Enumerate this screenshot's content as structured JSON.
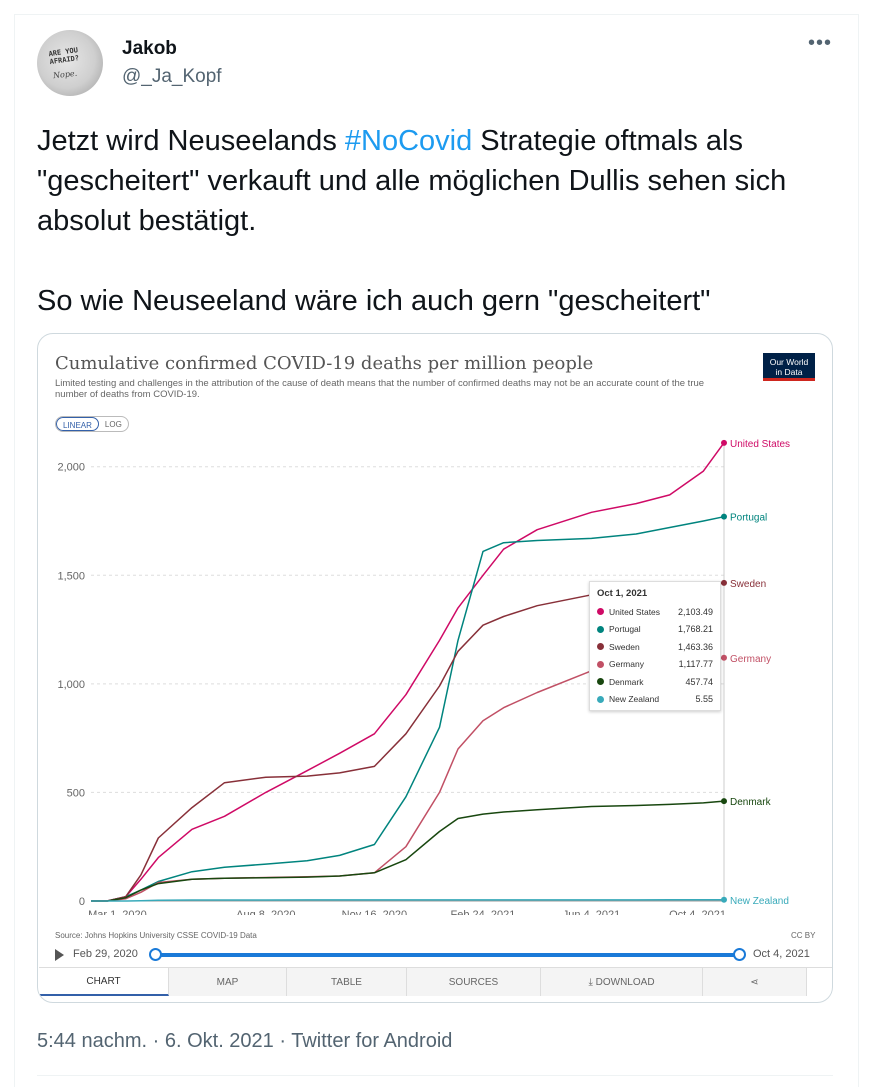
{
  "user": {
    "display_name": "Jakob",
    "handle": "@_Ja_Kopf",
    "avatar_text_1": "ARE YOU AFRAID?",
    "avatar_text_2": "Nope."
  },
  "tweet": {
    "line1_before": "Jetzt wird Neuseelands ",
    "hashtag": "#NoCovid",
    "line1_after": " Strategie oftmals als \"gescheitert\" verkauft und alle möglichen Dullis sehen sich absolut bestätigt.",
    "paragraph2": "So wie Neuseeland wäre ich auch gern \"gescheitert\"",
    "more_label": "•••"
  },
  "meta": {
    "timestamp": "5:44 nachm. · 6. Okt. 2021 · Twitter for Android"
  },
  "owid": {
    "logo_line1": "Our World",
    "logo_line2": "in Data",
    "scale_linear": "LINEAR",
    "scale_log": "LOG",
    "source": "Source: Johns Hopkins University CSSE COVID-19 Data",
    "license": "CC BY",
    "timeline_start": "Feb 29, 2020",
    "timeline_end": "Oct 4, 2021",
    "tabs": [
      "CHART",
      "MAP",
      "TABLE",
      "SOURCES",
      "⤓ DOWNLOAD",
      "⋖"
    ],
    "tooltip": {
      "date": "Oct 1, 2021",
      "rows": [
        {
          "name": "United States",
          "value": "2,103.49",
          "color": "#cf0a66"
        },
        {
          "name": "Portugal",
          "value": "1,768.21",
          "color": "#00847e"
        },
        {
          "name": "Sweden",
          "value": "1,463.36",
          "color": "#883039"
        },
        {
          "name": "Germany",
          "value": "1,117.77",
          "color": "#c15065"
        },
        {
          "name": "Denmark",
          "value": "457.74",
          "color": "#18470f"
        },
        {
          "name": "New Zealand",
          "value": "5.55",
          "color": "#38aaba"
        }
      ]
    }
  },
  "chart_data": {
    "type": "line",
    "title": "Cumulative confirmed COVID-19 deaths per million people",
    "subtitle": "Limited testing and challenges in the attribution of the cause of death means that the number of confirmed deaths may not be an accurate count of the true number of deaths from COVID-19.",
    "xlabel": "",
    "ylabel": "",
    "ylim": [
      0,
      2100
    ],
    "x_ticks": [
      "Mar 1, 2020",
      "Aug 8, 2020",
      "Nov 16, 2020",
      "Feb 24, 2021",
      "Jun 4, 2021",
      "Oct 4, 2021"
    ],
    "y_ticks": [
      "0",
      "500",
      "1,000",
      "1,500",
      "2,000"
    ],
    "x": [
      "2020-02-29",
      "2020-03-15",
      "2020-04-01",
      "2020-04-15",
      "2020-05-01",
      "2020-06-01",
      "2020-07-01",
      "2020-08-08",
      "2020-09-15",
      "2020-10-15",
      "2020-11-16",
      "2020-12-15",
      "2021-01-15",
      "2021-02-01",
      "2021-02-24",
      "2021-03-15",
      "2021-04-15",
      "2021-06-04",
      "2021-07-15",
      "2021-08-15",
      "2021-09-15",
      "2021-10-04"
    ],
    "series": [
      {
        "name": "United States",
        "color": "#cf0a66",
        "values": [
          0,
          1,
          20,
          100,
          200,
          330,
          390,
          500,
          600,
          680,
          770,
          950,
          1200,
          1350,
          1500,
          1620,
          1710,
          1790,
          1830,
          1870,
          1980,
          2110
        ]
      },
      {
        "name": "Portugal",
        "color": "#00847e",
        "values": [
          0,
          0,
          20,
          50,
          90,
          135,
          155,
          170,
          185,
          210,
          260,
          480,
          800,
          1200,
          1610,
          1650,
          1660,
          1670,
          1690,
          1720,
          1750,
          1770
        ]
      },
      {
        "name": "Sweden",
        "color": "#883039",
        "values": [
          0,
          0,
          20,
          120,
          290,
          430,
          545,
          570,
          575,
          590,
          620,
          770,
          990,
          1150,
          1270,
          1310,
          1360,
          1410,
          1430,
          1440,
          1455,
          1465
        ]
      },
      {
        "name": "Germany",
        "color": "#c15065",
        "values": [
          0,
          0,
          10,
          40,
          85,
          100,
          105,
          108,
          112,
          115,
          130,
          250,
          500,
          700,
          830,
          890,
          960,
          1060,
          1090,
          1100,
          1110,
          1120
        ]
      },
      {
        "name": "Denmark",
        "color": "#18470f",
        "values": [
          0,
          0,
          15,
          50,
          80,
          100,
          105,
          107,
          110,
          115,
          130,
          190,
          320,
          380,
          400,
          410,
          420,
          435,
          440,
          445,
          452,
          460
        ]
      },
      {
        "name": "New Zealand",
        "color": "#38aaba",
        "values": [
          0,
          0,
          0,
          1,
          3,
          4.5,
          4.5,
          4.5,
          5,
          5,
          5,
          5,
          5,
          5,
          5,
          5,
          5,
          5.2,
          5.2,
          5.3,
          5.5,
          5.5
        ]
      }
    ],
    "legend": "right-end-labels"
  }
}
